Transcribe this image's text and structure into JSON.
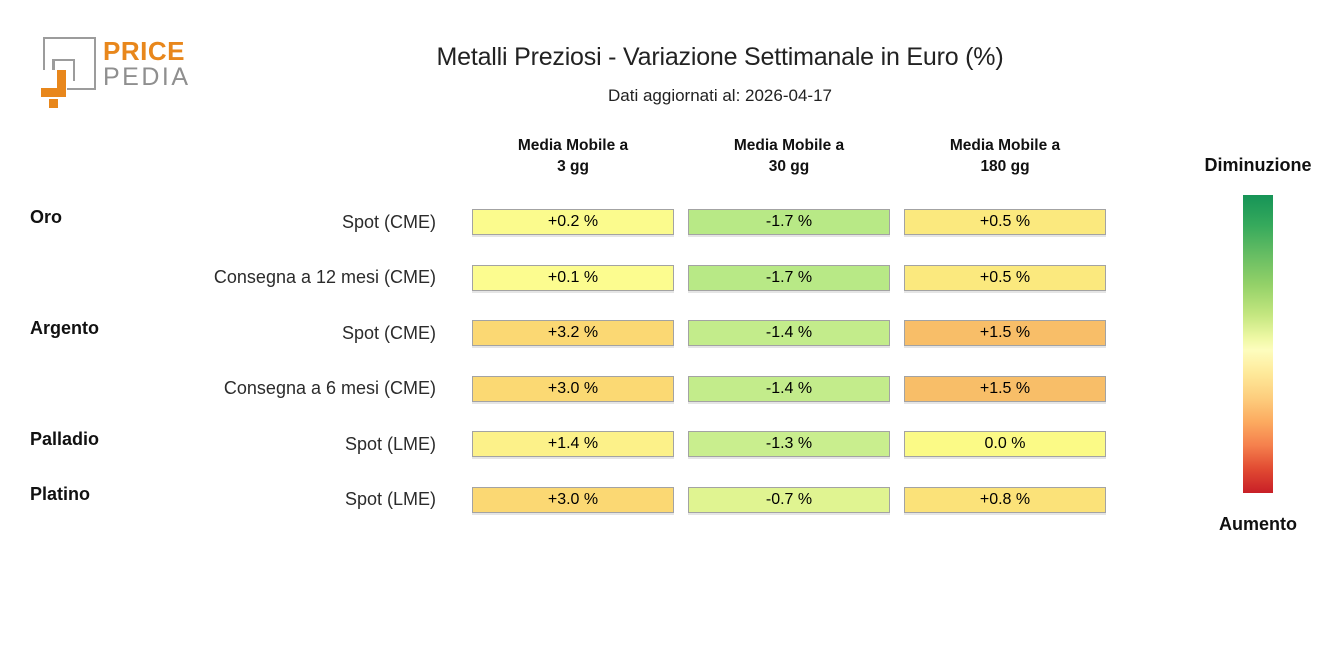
{
  "logo": {
    "brand_line1": "PRICE",
    "brand_line2": "PEDIA",
    "orange": "#e8871c",
    "gray": "#9c9c9c"
  },
  "header": {
    "title": "Metalli Preziosi - Variazione Settimanale in Euro (%)",
    "subtitle": "Dati aggiornati al: 2026-04-17"
  },
  "columns": [
    {
      "line1": "Media Mobile a",
      "line2": "3 gg"
    },
    {
      "line1": "Media Mobile a",
      "line2": "30 gg"
    },
    {
      "line1": "Media Mobile a",
      "line2": "180 gg"
    }
  ],
  "rows": [
    {
      "metal": "Oro",
      "series": "Spot (CME)",
      "cells": [
        {
          "text": "+0.2 %",
          "color": "#fbfb8d"
        },
        {
          "text": "-1.7 %",
          "color": "#b8e986"
        },
        {
          "text": "+0.5 %",
          "color": "#fbe97e"
        }
      ]
    },
    {
      "metal": "",
      "series": "Consegna a 12 mesi (CME)",
      "cells": [
        {
          "text": "+0.1 %",
          "color": "#fcfc8f"
        },
        {
          "text": "-1.7 %",
          "color": "#b8e986"
        },
        {
          "text": "+0.5 %",
          "color": "#fbe97e"
        }
      ]
    },
    {
      "metal": "Argento",
      "series": "Spot (CME)",
      "cells": [
        {
          "text": "+3.2 %",
          "color": "#fbd873"
        },
        {
          "text": "-1.4 %",
          "color": "#c3ec8b"
        },
        {
          "text": "+1.5 %",
          "color": "#f8be68"
        }
      ]
    },
    {
      "metal": "",
      "series": "Consegna a 6 mesi (CME)",
      "cells": [
        {
          "text": "+3.0 %",
          "color": "#fbd973"
        },
        {
          "text": "-1.4 %",
          "color": "#c3ec8b"
        },
        {
          "text": "+1.5 %",
          "color": "#f8be68"
        }
      ]
    },
    {
      "metal": "Palladio",
      "series": "Spot (LME)",
      "cells": [
        {
          "text": "+1.4 %",
          "color": "#fcf189"
        },
        {
          "text": "-1.3 %",
          "color": "#c9ee8e"
        },
        {
          "text": "0.0 %",
          "color": "#fbfa86"
        }
      ]
    },
    {
      "metal": "Platino",
      "series": "Spot (LME)",
      "cells": [
        {
          "text": "+3.0 %",
          "color": "#fbd873"
        },
        {
          "text": "-0.7 %",
          "color": "#e0f491"
        },
        {
          "text": "+0.8 %",
          "color": "#fbe279"
        }
      ]
    }
  ],
  "legend": {
    "top_label": "Diminuzione",
    "bottom_label": "Aumento",
    "gradient_stops": [
      "#169457 0%",
      "#35a95c 10%",
      "#66bd63 20%",
      "#93d168 30%",
      "#c3e67f 40%",
      "#eef8a4 48%",
      "#fdfdbe 52%",
      "#fee999 60%",
      "#fdce7e 68%",
      "#fcab60 76%",
      "#f5804d 84%",
      "#e14a32 92%",
      "#c81f27 100%"
    ]
  },
  "chart_data": {
    "type": "heatmap",
    "title": "Metalli Preziosi - Variazione Settimanale in Euro (%)",
    "subtitle": "Dati aggiornati al: 2026-04-17",
    "unit": "%",
    "columns": [
      "Media Mobile a 3 gg",
      "Media Mobile a 30 gg",
      "Media Mobile a 180 gg"
    ],
    "rows": [
      {
        "group": "Oro",
        "label": "Spot (CME)",
        "values": [
          0.2,
          -1.7,
          0.5
        ]
      },
      {
        "group": "Oro",
        "label": "Consegna a 12 mesi (CME)",
        "values": [
          0.1,
          -1.7,
          0.5
        ]
      },
      {
        "group": "Argento",
        "label": "Spot (CME)",
        "values": [
          3.2,
          -1.4,
          1.5
        ]
      },
      {
        "group": "Argento",
        "label": "Consegna a 6 mesi (CME)",
        "values": [
          3.0,
          -1.4,
          1.5
        ]
      },
      {
        "group": "Palladio",
        "label": "Spot (LME)",
        "values": [
          1.4,
          -1.3,
          0.0
        ]
      },
      {
        "group": "Platino",
        "label": "Spot (LME)",
        "values": [
          3.0,
          -0.7,
          0.8
        ]
      }
    ],
    "colormap": {
      "direction": "green=diminuzione(top), red=aumento(bottom)",
      "legend_top": "Diminuzione",
      "legend_bottom": "Aumento"
    },
    "legend_position": "right"
  }
}
